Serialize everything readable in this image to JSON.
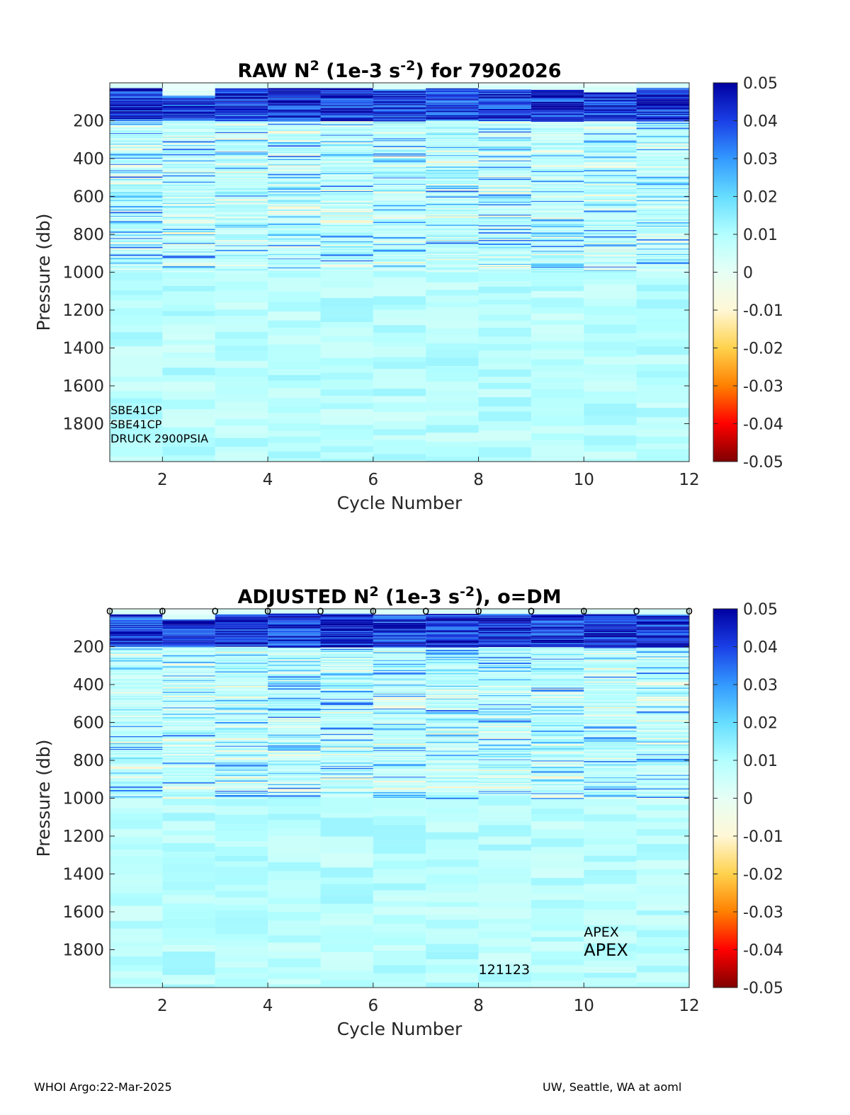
{
  "chart_data": [
    {
      "type": "heatmap",
      "title_main": "RAW N",
      "title_sup": "2",
      "title_mid": " (1e-3 s",
      "title_sup2": "-2",
      "title_end": ") for 7902026",
      "xlabel": "Cycle Number",
      "ylabel": "Pressure (db)",
      "xlim": [
        1,
        12
      ],
      "ylim": [
        2000,
        0
      ],
      "x_ticks": [
        "2",
        "4",
        "6",
        "8",
        "10",
        "12"
      ],
      "y_ticks": [
        "200",
        "400",
        "600",
        "800",
        "1000",
        "1200",
        "1400",
        "1600",
        "1800"
      ],
      "x": [
        1,
        2,
        3,
        4,
        5,
        6,
        7,
        8,
        9,
        10,
        11
      ],
      "colorbar_range": [
        -0.05,
        0.05
      ],
      "colorbar_ticks": [
        "0.05",
        "0.04",
        "0.03",
        "0.02",
        "0.01",
        "0",
        "-0.01",
        "-0.02",
        "-0.03",
        "-0.04",
        "-0.05"
      ],
      "surface_layer_start_pressure": [
        0,
        40,
        0,
        0,
        0,
        10,
        0,
        10,
        10,
        20,
        0
      ],
      "annotations": [
        "SBE41CP",
        "SBE41CP",
        "DRUCK 2900PSIA"
      ],
      "dm_markers": []
    },
    {
      "type": "heatmap",
      "title_main": "ADJUSTED N",
      "title_sup": "2",
      "title_mid": " (1e-3 s",
      "title_sup2": "-2",
      "title_end": "), o=DM",
      "xlabel": "Cycle Number",
      "ylabel": "Pressure (db)",
      "xlim": [
        1,
        12
      ],
      "ylim": [
        2000,
        0
      ],
      "x_ticks": [
        "2",
        "4",
        "6",
        "8",
        "10",
        "12"
      ],
      "y_ticks": [
        "200",
        "400",
        "600",
        "800",
        "1000",
        "1200",
        "1400",
        "1600",
        "1800"
      ],
      "x": [
        1,
        2,
        3,
        4,
        5,
        6,
        7,
        8,
        9,
        10,
        11
      ],
      "colorbar_range": [
        -0.05,
        0.05
      ],
      "colorbar_ticks": [
        "0.05",
        "0.04",
        "0.03",
        "0.02",
        "0.01",
        "0",
        "-0.01",
        "-0.02",
        "-0.03",
        "-0.04",
        "-0.05"
      ],
      "surface_layer_start_pressure": [
        0,
        30,
        0,
        0,
        0,
        0,
        0,
        0,
        0,
        0,
        0
      ],
      "annotations": [
        "APEX",
        "APEX",
        "121123"
      ],
      "dm_marker_label": "o",
      "dm_markers": [
        1,
        2,
        3,
        4,
        5,
        6,
        7,
        8,
        9,
        10,
        11,
        12
      ]
    }
  ],
  "colors": {
    "colormap": [
      "#7f0000",
      "#ff0000",
      "#ff8000",
      "#ffd24d",
      "#fff7d6",
      "#e6fff5",
      "#b3ffff",
      "#66ddff",
      "#3399ff",
      "#1a3fe6",
      "#0000a0"
    ],
    "frame": "#262626"
  },
  "footer": {
    "left": "WHOI Argo:22-Mar-2025",
    "right": "UW, Seattle, WA at aoml"
  }
}
